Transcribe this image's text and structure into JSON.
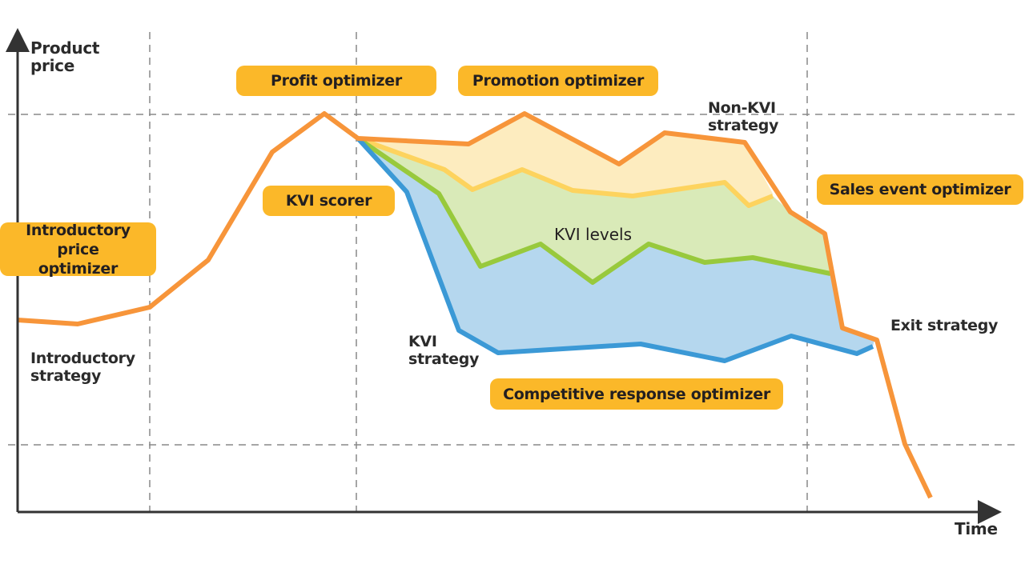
{
  "axes": {
    "y_label": "Product\nprice",
    "x_label": "Time"
  },
  "optimizers": {
    "profit": "Profit optimizer",
    "promotion": "Promotion optimizer",
    "kvi_scorer": "KVI scorer",
    "introductory_price": "Introductory price optimizer",
    "sales_event": "Sales event optimizer",
    "competitive_response": "Competitive response optimizer"
  },
  "strategies": {
    "introductory": "Introductory strategy",
    "non_kvi": "Non-KVI strategy",
    "kvi": "KVI strategy",
    "exit": "Exit strategy"
  },
  "region_label": "KVI levels",
  "colors": {
    "orange": "#f7953a",
    "yellow": "#fdd35e",
    "green": "#98c93c",
    "blue": "#3b99d6",
    "box": "#fbb829"
  }
}
